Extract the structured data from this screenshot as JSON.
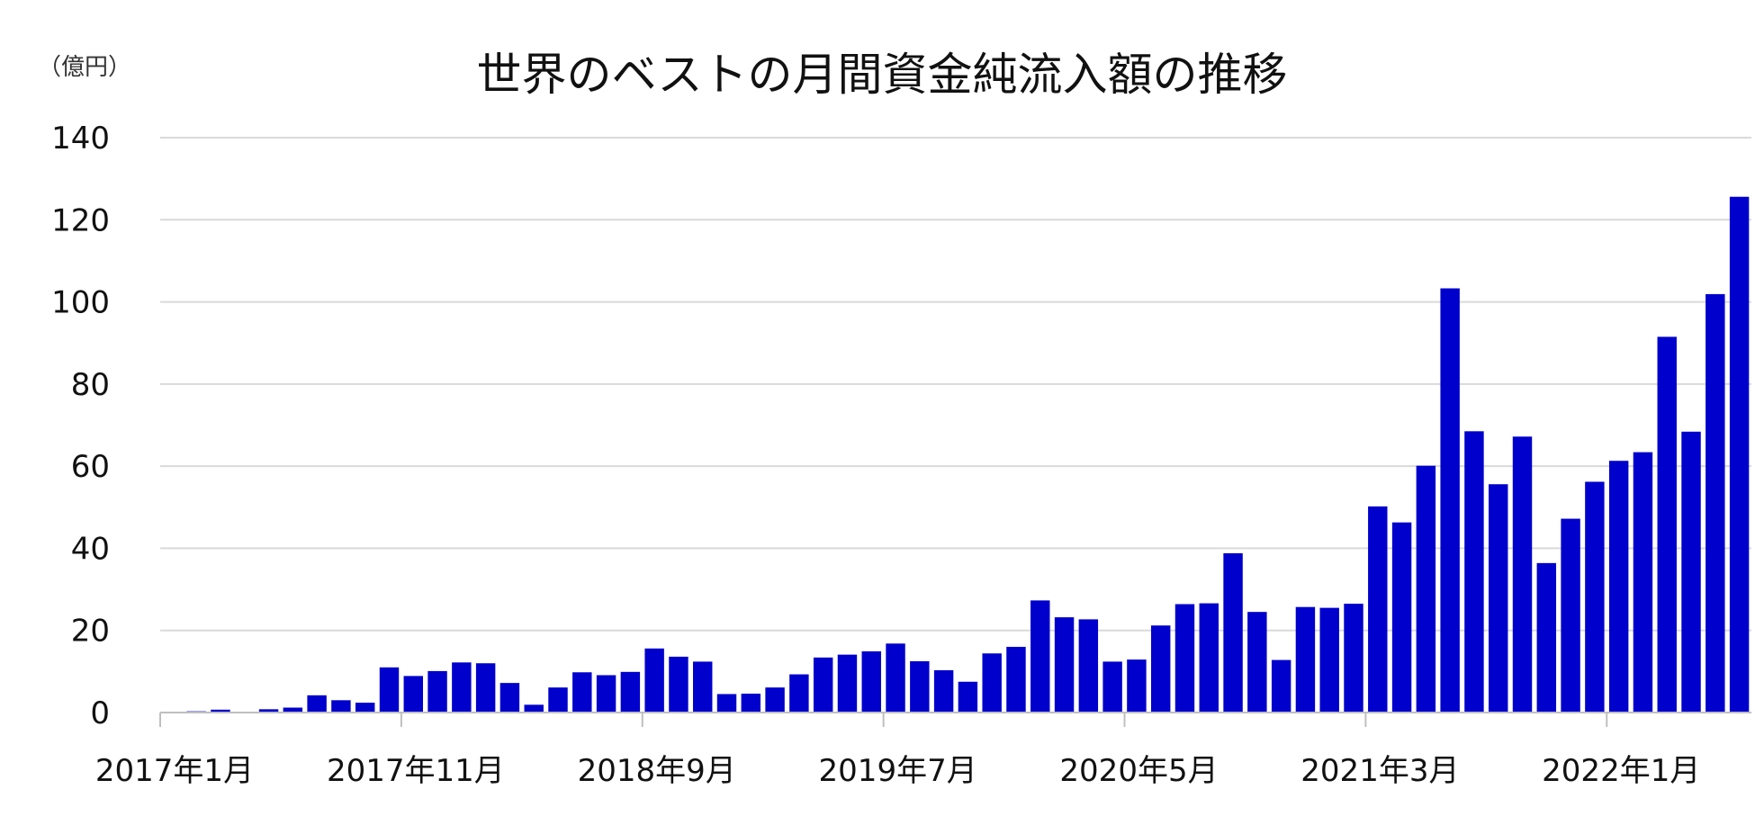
{
  "chart_data": {
    "type": "bar",
    "title": "世界のベストの月間資金純流入額の推移",
    "unit_label": "（億円）",
    "ylim": [
      0,
      140
    ],
    "yticks": [
      0,
      20,
      40,
      60,
      80,
      100,
      120,
      140
    ],
    "grid": true,
    "bar_color": "#0000cc",
    "categories": [
      "2017年1月",
      "2017年2月",
      "2017年3月",
      "2017年4月",
      "2017年5月",
      "2017年6月",
      "2017年7月",
      "2017年8月",
      "2017年9月",
      "2017年10月",
      "2017年11月",
      "2017年12月",
      "2018年1月",
      "2018年2月",
      "2018年3月",
      "2018年4月",
      "2018年5月",
      "2018年6月",
      "2018年7月",
      "2018年8月",
      "2018年9月",
      "2018年10月",
      "2018年11月",
      "2018年12月",
      "2019年1月",
      "2019年2月",
      "2019年3月",
      "2019年4月",
      "2019年5月",
      "2019年6月",
      "2019年7月",
      "2019年8月",
      "2019年9月",
      "2019年10月",
      "2019年11月",
      "2019年12月",
      "2020年1月",
      "2020年2月",
      "2020年3月",
      "2020年4月",
      "2020年5月",
      "2020年6月",
      "2020年7月",
      "2020年8月",
      "2020年9月",
      "2020年10月",
      "2020年11月",
      "2020年12月",
      "2021年1月",
      "2021年2月",
      "2021年3月",
      "2021年4月",
      "2021年5月",
      "2021年6月",
      "2021年7月",
      "2021年8月",
      "2021年9月",
      "2021年10月",
      "2021年11月",
      "2021年12月",
      "2022年1月",
      "2022年2月",
      "2022年3月",
      "2022年4月",
      "2022年5月",
      "2022年6月"
    ],
    "x_tick_labels": [
      "2017年1月",
      "2017年11月",
      "2018年9月",
      "2019年7月",
      "2020年5月",
      "2021年3月",
      "2022年1月"
    ],
    "values": [
      0,
      0.3,
      0.7,
      0,
      0.8,
      1.2,
      4.2,
      3.0,
      2.4,
      11.0,
      8.9,
      10.1,
      12.2,
      12.0,
      7.2,
      1.9,
      6.1,
      9.8,
      9.1,
      9.9,
      15.6,
      13.6,
      12.4,
      4.5,
      4.6,
      6.1,
      9.3,
      13.4,
      14.1,
      14.9,
      16.8,
      12.5,
      10.3,
      7.5,
      14.4,
      16.0,
      27.3,
      23.2,
      22.7,
      12.4,
      12.9,
      21.2,
      26.4,
      26.6,
      38.8,
      24.5,
      12.8,
      25.7,
      25.5,
      26.5,
      50.2,
      46.3,
      60.1,
      103.3,
      68.5,
      55.6,
      67.2,
      36.4,
      47.2,
      56.2,
      61.3,
      63.4,
      91.5,
      68.4,
      101.9,
      125.6
    ]
  }
}
